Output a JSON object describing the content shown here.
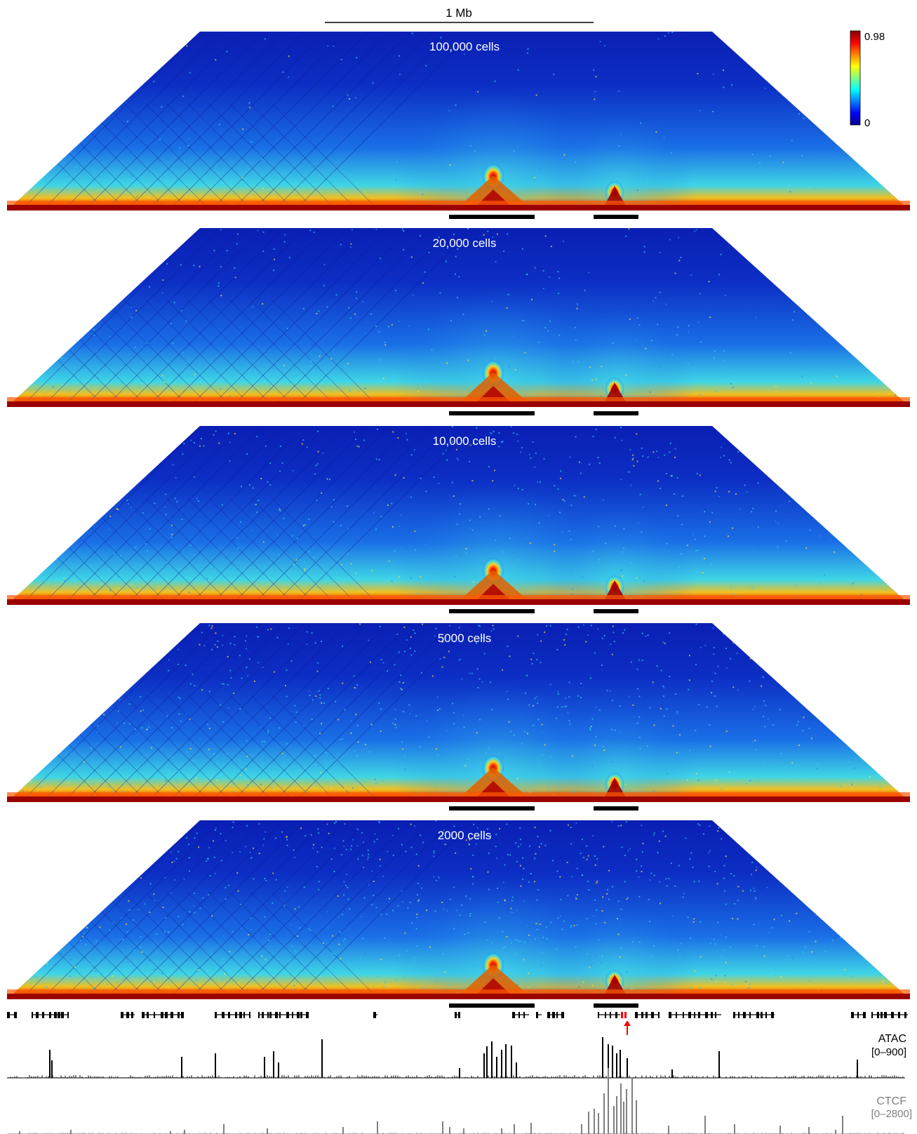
{
  "scale_bar": {
    "label": "1 Mb"
  },
  "colorbar": {
    "max_label": "0.98",
    "min_label": "0",
    "stops": [
      "#800000",
      "#ff0000",
      "#ff8000",
      "#ffff00",
      "#80ff80",
      "#00ffff",
      "#0080ff",
      "#0000ff",
      "#00008f"
    ]
  },
  "panels": [
    {
      "title": "100,000 cells"
    },
    {
      "title": "20,000 cells"
    },
    {
      "title": "10,000 cells"
    },
    {
      "title": "5000 cells"
    },
    {
      "title": "2000 cells"
    }
  ],
  "tracks": {
    "atac": {
      "label": "ATAC",
      "range": "[0–900]",
      "color": "#000000"
    },
    "ctcf": {
      "label": "CTCF",
      "range": "[0–2800]",
      "color": "#808080"
    }
  },
  "highlight_color": "#ff0000",
  "map_colors": {
    "background": "#0a1fb4",
    "diagonal": "#9a0000",
    "hotspot": "#ff6a00",
    "halo": "#35c8e8"
  }
}
